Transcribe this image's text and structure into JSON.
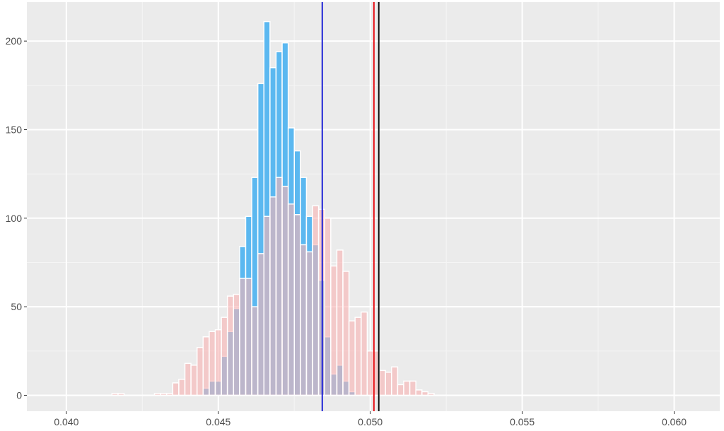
{
  "chart_data": {
    "type": "bar",
    "title": "",
    "xlabel": "",
    "ylabel": "",
    "xlim": [
      0.0387,
      0.0615
    ],
    "ylim": [
      -9,
      222
    ],
    "bin_width": 0.0002,
    "x_ticks": [
      {
        "value": 0.04,
        "label": "0.040"
      },
      {
        "value": 0.045,
        "label": "0.045"
      },
      {
        "value": 0.05,
        "label": "0.050"
      },
      {
        "value": 0.055,
        "label": "0.055"
      },
      {
        "value": 0.06,
        "label": "0.060"
      }
    ],
    "y_ticks": [
      {
        "value": 0,
        "label": "0"
      },
      {
        "value": 50,
        "label": "50"
      },
      {
        "value": 100,
        "label": "100"
      },
      {
        "value": 150,
        "label": "150"
      },
      {
        "value": 200,
        "label": "200"
      }
    ],
    "bin_centers": [
      0.04,
      0.0402,
      0.0404,
      0.0406,
      0.0408,
      0.041,
      0.0412,
      0.0414,
      0.0416,
      0.0418,
      0.042,
      0.0422,
      0.0424,
      0.0426,
      0.0428,
      0.043,
      0.0432,
      0.0434,
      0.0436,
      0.0438,
      0.044,
      0.0442,
      0.0444,
      0.0446,
      0.0448,
      0.045,
      0.0452,
      0.0454,
      0.0456,
      0.0458,
      0.046,
      0.0462,
      0.0464,
      0.0466,
      0.0468,
      0.047,
      0.0472,
      0.0474,
      0.0476,
      0.0478,
      0.048,
      0.0482,
      0.0484,
      0.0486,
      0.0488,
      0.049,
      0.0492,
      0.0494,
      0.0496,
      0.0498,
      0.05,
      0.0502,
      0.0504,
      0.0506,
      0.0508,
      0.051,
      0.0512,
      0.0514,
      0.0516,
      0.0518,
      0.052,
      0.0522,
      0.0524,
      0.0526,
      0.0528,
      0.053,
      0.0532,
      0.0534,
      0.0536,
      0.0538,
      0.054,
      0.0542,
      0.0544,
      0.0546,
      0.0548,
      0.055,
      0.0552,
      0.0554,
      0.0556,
      0.0558,
      0.056,
      0.0562,
      0.0564,
      0.0566,
      0.0568,
      0.057,
      0.0572,
      0.0574,
      0.0576,
      0.0578,
      0.058,
      0.0582,
      0.0584,
      0.0586,
      0.0588,
      0.059
    ],
    "series": [
      {
        "color": "#5bb8f0",
        "values": [
          0,
          0,
          0,
          0,
          0,
          0,
          0,
          0,
          0,
          0,
          0,
          0,
          0,
          0,
          0,
          0,
          0,
          0,
          0,
          0,
          0,
          0,
          0,
          4,
          8,
          8,
          22,
          36,
          49,
          84,
          101,
          123,
          176,
          211,
          185,
          194,
          199,
          151,
          138,
          123,
          101,
          85,
          65,
          33,
          12,
          17,
          8,
          2,
          0,
          0,
          0,
          0,
          0,
          0,
          0,
          0,
          0,
          0,
          0,
          0,
          0,
          0,
          0,
          0,
          0,
          0,
          0,
          0,
          0,
          0,
          0,
          0,
          0,
          0,
          0,
          0,
          0,
          0,
          0,
          0,
          0,
          0,
          0,
          0,
          0,
          0,
          0,
          0,
          0,
          0,
          0,
          0,
          0,
          0,
          0,
          0
        ]
      },
      {
        "color": "#f8b4b4",
        "values": [
          0,
          0,
          0,
          0,
          0,
          0,
          0,
          0,
          1,
          1,
          0,
          0,
          0,
          0,
          0,
          1,
          1,
          1,
          7,
          9,
          18,
          17,
          27,
          33,
          36,
          37,
          44,
          56,
          57,
          66,
          66,
          50,
          80,
          101,
          112,
          123,
          118,
          108,
          102,
          85,
          81,
          107,
          105,
          100,
          73,
          82,
          70,
          42,
          44,
          47,
          25,
          25,
          14,
          13,
          16,
          6,
          8,
          8,
          3,
          2,
          1,
          0,
          0,
          0,
          0,
          0,
          0,
          0,
          0,
          0,
          0,
          0,
          0,
          0,
          0,
          0,
          0,
          0,
          0,
          0,
          0,
          0,
          0,
          0,
          0,
          0,
          0,
          0,
          0,
          0,
          0,
          0,
          0,
          0,
          0,
          0
        ]
      }
    ],
    "vlines": [
      {
        "x": 0.04842,
        "color": "#1f24d6"
      },
      {
        "x": 0.05012,
        "color": "#e8141a"
      },
      {
        "x": 0.05028,
        "color": "#111111"
      }
    ]
  }
}
